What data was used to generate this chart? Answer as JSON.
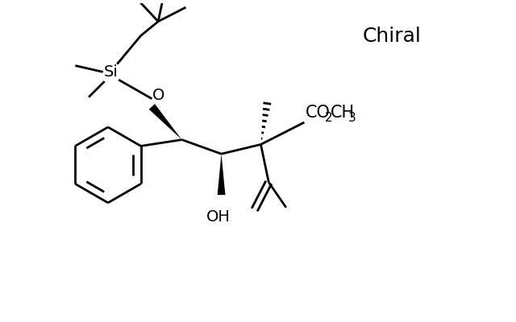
{
  "bg_color": "#ffffff",
  "line_color": "#000000",
  "line_width": 2.0,
  "figsize": [
    6.4,
    4.0
  ],
  "dpi": 100,
  "chiral_label": "Chiral",
  "oh_label": "OH",
  "o_label": "O",
  "si_label": "Si",
  "co2_label": "CO",
  "co2_sub": "2",
  "ch3_label": "CH",
  "ch3_sub": "3"
}
